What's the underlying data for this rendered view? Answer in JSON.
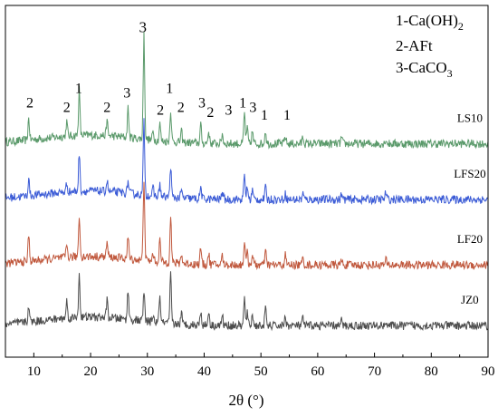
{
  "chart_data": {
    "type": "line",
    "title": "",
    "xlabel": "2θ (°)",
    "ylabel": "",
    "xlim": [
      5,
      90
    ],
    "xticks": [
      10,
      20,
      30,
      40,
      50,
      60,
      70,
      80,
      90
    ],
    "legend": [
      "1-Ca(OH)",
      "2",
      "2-AFt",
      "3-CaCO",
      "3"
    ],
    "legend_placement": "top-right",
    "grid": false,
    "series": [
      {
        "name": "LS10",
        "color": "#5b9a6b",
        "baseline": 8.3,
        "peaks": [
          [
            9.1,
            0.9
          ],
          [
            15.8,
            0.6
          ],
          [
            18.0,
            1.9
          ],
          [
            22.9,
            0.6
          ],
          [
            26.6,
            1.2
          ],
          [
            29.4,
            4.3
          ],
          [
            31.0,
            0.35
          ],
          [
            32.2,
            0.7
          ],
          [
            34.1,
            1.3
          ],
          [
            36.0,
            0.45
          ],
          [
            39.4,
            0.75
          ],
          [
            40.8,
            0.5
          ],
          [
            43.2,
            0.4
          ],
          [
            47.1,
            1.3
          ],
          [
            47.6,
            0.6
          ],
          [
            48.5,
            0.5
          ],
          [
            50.8,
            0.55
          ],
          [
            54.3,
            0.3
          ],
          [
            57.4,
            0.3
          ],
          [
            64.2,
            0.25
          ],
          [
            72.0,
            0.2
          ]
        ]
      },
      {
        "name": "LFS20",
        "color": "#3b5bd6",
        "baseline": 6.0,
        "peaks": [
          [
            9.1,
            0.7
          ],
          [
            15.8,
            0.35
          ],
          [
            18.0,
            1.6
          ],
          [
            22.9,
            0.45
          ],
          [
            26.6,
            0.5
          ],
          [
            29.4,
            3.0
          ],
          [
            31.0,
            0.3
          ],
          [
            32.2,
            0.5
          ],
          [
            34.1,
            1.3
          ],
          [
            36.0,
            0.3
          ],
          [
            39.4,
            0.5
          ],
          [
            43.2,
            0.35
          ],
          [
            47.1,
            1.0
          ],
          [
            47.6,
            0.5
          ],
          [
            48.5,
            0.4
          ],
          [
            50.8,
            0.5
          ],
          [
            54.3,
            0.25
          ],
          [
            57.4,
            0.25
          ],
          [
            64.2,
            0.2
          ],
          [
            72.0,
            0.3
          ]
        ]
      },
      {
        "name": "LF20",
        "color": "#c0583d",
        "baseline": 3.3,
        "peaks": [
          [
            9.1,
            1.1
          ],
          [
            15.8,
            0.55
          ],
          [
            18.0,
            1.7
          ],
          [
            22.9,
            0.6
          ],
          [
            26.6,
            0.9
          ],
          [
            29.4,
            3.4
          ],
          [
            31.0,
            0.35
          ],
          [
            32.2,
            0.9
          ],
          [
            34.1,
            2.0
          ],
          [
            36.0,
            0.4
          ],
          [
            39.4,
            0.7
          ],
          [
            40.8,
            0.45
          ],
          [
            43.2,
            0.4
          ],
          [
            47.1,
            1.0
          ],
          [
            47.6,
            0.5
          ],
          [
            48.5,
            0.45
          ],
          [
            50.8,
            0.6
          ],
          [
            54.3,
            0.4
          ],
          [
            57.4,
            0.3
          ],
          [
            64.2,
            0.2
          ],
          [
            72.0,
            0.2
          ]
        ]
      },
      {
        "name": "JZ0",
        "color": "#4d4d4d",
        "baseline": 0.8,
        "peaks": [
          [
            9.1,
            0.7
          ],
          [
            15.8,
            0.7
          ],
          [
            18.0,
            1.8
          ],
          [
            22.9,
            0.7
          ],
          [
            26.6,
            1.2
          ],
          [
            29.4,
            1.2
          ],
          [
            31.0,
            0.3
          ],
          [
            32.2,
            1.1
          ],
          [
            34.1,
            2.0
          ],
          [
            36.0,
            0.45
          ],
          [
            39.4,
            0.6
          ],
          [
            40.8,
            0.6
          ],
          [
            43.2,
            0.4
          ],
          [
            47.1,
            1.1
          ],
          [
            47.6,
            0.5
          ],
          [
            48.5,
            0.45
          ],
          [
            50.8,
            0.7
          ],
          [
            54.3,
            0.4
          ],
          [
            57.4,
            0.3
          ],
          [
            64.2,
            0.2
          ],
          [
            72.0,
            0.2
          ]
        ]
      }
    ],
    "peak_labels": [
      {
        "text": "2",
        "x": 9.3,
        "y": 9.8
      },
      {
        "text": "2",
        "x": 15.8,
        "y": 9.6
      },
      {
        "text": "1",
        "x": 17.9,
        "y": 10.4
      },
      {
        "text": "2",
        "x": 22.9,
        "y": 9.6
      },
      {
        "text": "3",
        "x": 26.4,
        "y": 10.2
      },
      {
        "text": "3",
        "x": 29.2,
        "y": 12.9
      },
      {
        "text": "1",
        "x": 33.9,
        "y": 10.4
      },
      {
        "text": "2",
        "x": 32.3,
        "y": 9.5
      },
      {
        "text": "2",
        "x": 35.9,
        "y": 9.6
      },
      {
        "text": "3",
        "x": 39.6,
        "y": 9.8
      },
      {
        "text": "2",
        "x": 41.1,
        "y": 9.4
      },
      {
        "text": "3",
        "x": 44.3,
        "y": 9.5
      },
      {
        "text": "1",
        "x": 46.8,
        "y": 9.8
      },
      {
        "text": "3",
        "x": 48.6,
        "y": 9.6
      },
      {
        "text": "1",
        "x": 50.6,
        "y": 9.3
      },
      {
        "text": "1",
        "x": 54.6,
        "y": 9.3
      }
    ]
  }
}
